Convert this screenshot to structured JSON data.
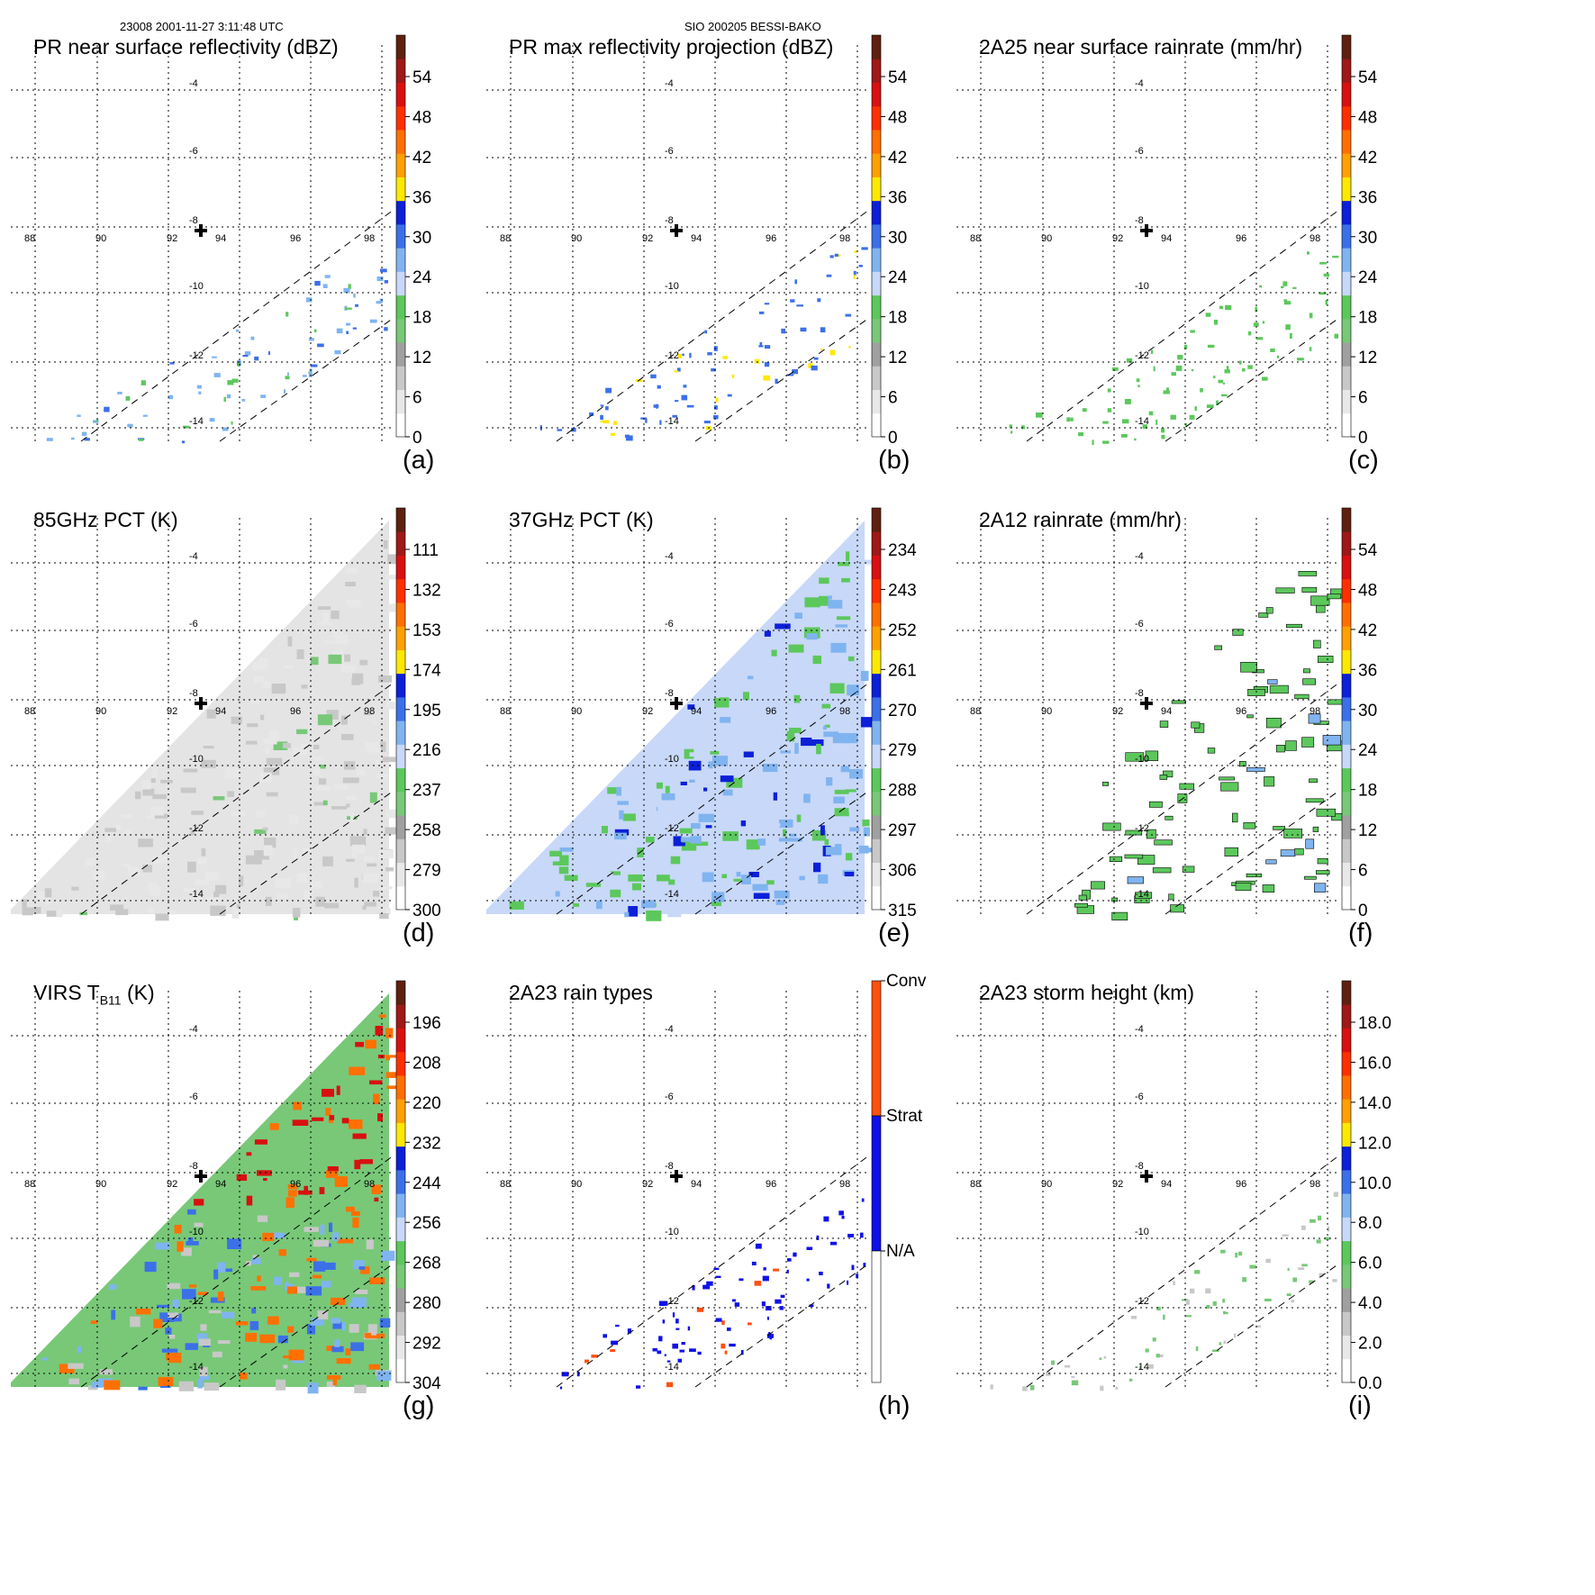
{
  "header": {
    "left": "23008 2001-11-27 3:11:48 UTC",
    "center": "SIO 200205 BESSI-BAKO"
  },
  "grid": {
    "lon_labels": [
      "88",
      "90",
      "92",
      "94",
      "96",
      "98"
    ],
    "lat_labels": [
      "-4",
      "-6",
      "-8",
      "-10",
      "-12",
      "-14"
    ]
  },
  "colors": {
    "scale": [
      "#ffffff",
      "#e8e8e8",
      "#c8c8c8",
      "#a0a0a0",
      "#78c878",
      "#5cc85c",
      "#c8d8f8",
      "#80b4f0",
      "#3c70e8",
      "#0c20d8",
      "#ffe800",
      "#ffa000",
      "#ff7000",
      "#ff3000",
      "#d81010",
      "#a01818",
      "#602010"
    ],
    "rain_types": [
      "#ffffff",
      "#1010e8",
      "#ff5010"
    ]
  },
  "panels": [
    {
      "id": "a",
      "title": "PR near surface reflectivity (dBZ)",
      "label": "(a)",
      "colorbar": [
        "54",
        "48",
        "42",
        "36",
        "30",
        "24",
        "18",
        "12",
        "6",
        "0"
      ],
      "field": "swath_sparse"
    },
    {
      "id": "b",
      "title": "PR max reflectivity projection (dBZ)",
      "label": "(b)",
      "colorbar": [
        "54",
        "48",
        "42",
        "36",
        "30",
        "24",
        "18",
        "12",
        "6",
        "0"
      ],
      "field": "swath_sparse"
    },
    {
      "id": "c",
      "title": "2A25 near surface rainrate (mm/hr)",
      "label": "(c)",
      "colorbar": [
        "54",
        "48",
        "42",
        "36",
        "30",
        "24",
        "18",
        "12",
        "6",
        "0"
      ],
      "field": "swath_sparse"
    },
    {
      "id": "d",
      "title": "85GHz PCT (K)",
      "label": "(d)",
      "colorbar": [
        "111",
        "132",
        "153",
        "174",
        "195",
        "216",
        "237",
        "258",
        "279",
        "300"
      ],
      "field": "tmi_wide"
    },
    {
      "id": "e",
      "title": "37GHz PCT (K)",
      "label": "(e)",
      "colorbar": [
        "234",
        "243",
        "252",
        "261",
        "270",
        "279",
        "288",
        "297",
        "306",
        "315"
      ],
      "field": "tmi_wide"
    },
    {
      "id": "f",
      "title": "2A12 rainrate (mm/hr)",
      "label": "(f)",
      "colorbar": [
        "54",
        "48",
        "42",
        "36",
        "30",
        "24",
        "18",
        "12",
        "6",
        "0"
      ],
      "field": "tmi_rain"
    },
    {
      "id": "g",
      "title": "VIRS T",
      "title_sub": "B11",
      "title_suffix": " (K)",
      "label": "(g)",
      "colorbar": [
        "196",
        "208",
        "220",
        "232",
        "244",
        "256",
        "268",
        "280",
        "292",
        "304"
      ],
      "field": "virs"
    },
    {
      "id": "h",
      "title": "2A23 rain types",
      "label": "(h)",
      "colorbar": [
        "Conv",
        "Strat",
        "N/A"
      ],
      "field": "swath_sparse"
    },
    {
      "id": "i",
      "title": "2A23 storm height (km)",
      "label": "(i)",
      "colorbar": [
        "18.0",
        "16.0",
        "14.0",
        "12.0",
        "10.0",
        "8.0",
        "6.0",
        "4.0",
        "2.0",
        "0.0"
      ],
      "field": "swath_sparse"
    }
  ]
}
